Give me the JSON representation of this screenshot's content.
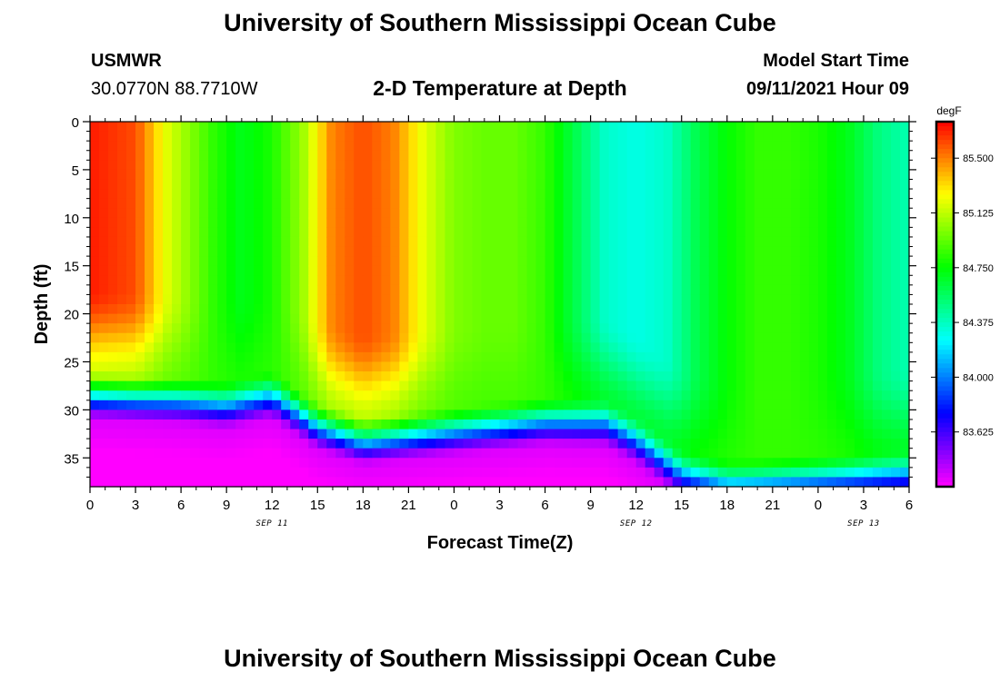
{
  "page": {
    "title_top": "University of Southern Mississippi Ocean Cube",
    "title_bottom": "University of Southern Mississippi Ocean Cube",
    "station": "USMWR",
    "location": "30.0770N  88.7710W",
    "plot_title": "2-D Temperature at Depth",
    "start_label": "Model Start Time",
    "start_time": "09/11/2021 Hour 09"
  },
  "chart_data": {
    "type": "heatmap",
    "title": "2-D Temperature at Depth",
    "xlabel": "Forecast Time(Z)",
    "ylabel": "Depth (ft)",
    "xlim": [
      0,
      54
    ],
    "ylim": [
      38,
      0
    ],
    "x_tick_labels": [
      "0",
      "3",
      "6",
      "9",
      "12",
      "15",
      "18",
      "21",
      "0",
      "3",
      "6",
      "9",
      "12",
      "15",
      "18",
      "21",
      "0",
      "3",
      "6"
    ],
    "y_ticks": [
      0,
      5,
      10,
      15,
      20,
      25,
      30,
      35
    ],
    "date_labels": [
      {
        "label": "SEP 11",
        "hour": 12
      },
      {
        "label": "SEP 12",
        "hour": 36
      },
      {
        "label": "SEP 13",
        "hour": 51
      }
    ],
    "colorbar": {
      "unit": "degF",
      "min": 83.25,
      "max": 85.75,
      "ticks": [
        "85.500",
        "85.125",
        "84.750",
        "84.375",
        "84.000",
        "83.625"
      ],
      "tick_values": [
        85.5,
        85.125,
        84.75,
        84.375,
        84.0,
        83.625
      ]
    },
    "surface_temperature": {
      "hours": [
        0,
        3,
        5,
        8,
        10,
        12,
        14,
        16,
        18,
        20,
        22,
        24,
        26,
        28,
        30,
        32,
        34,
        36,
        38,
        40,
        42,
        44,
        46,
        48,
        50,
        52,
        54
      ],
      "degF": [
        85.7,
        85.6,
        85.2,
        84.85,
        84.7,
        84.8,
        85.05,
        85.5,
        85.6,
        85.5,
        85.2,
        85.0,
        84.95,
        84.95,
        84.85,
        84.6,
        84.35,
        84.3,
        84.35,
        84.6,
        84.75,
        84.85,
        84.85,
        84.8,
        84.7,
        84.5,
        84.4
      ]
    },
    "thermocline_depth_ft": {
      "hours": [
        0,
        6,
        9,
        12,
        15,
        18,
        24,
        30,
        34,
        36,
        39,
        42,
        48,
        54
      ],
      "depth": [
        29.3,
        29.8,
        30.3,
        29.3,
        32.5,
        34.0,
        33.0,
        32.0,
        32.2,
        34.0,
        37.5,
        38.5,
        38.0,
        37.5
      ]
    },
    "bottom_temperature_degF": 83.35
  }
}
